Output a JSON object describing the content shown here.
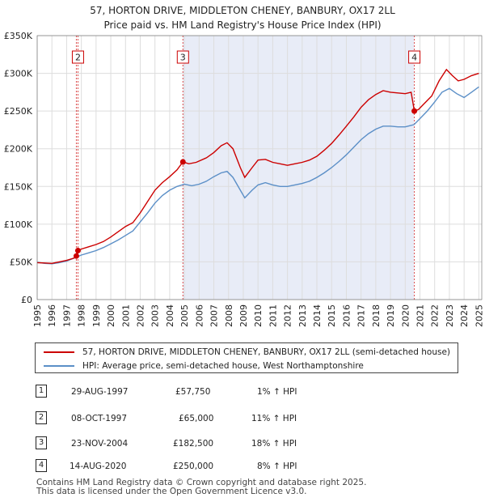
{
  "chart_data": {
    "type": "line",
    "title": "57, HORTON DRIVE, MIDDLETON CHENEY, BANBURY, OX17 2LL",
    "subtitle": "Price paid vs. HM Land Registry's House Price Index (HPI)",
    "xlabel": "",
    "ylabel": "",
    "xlim": [
      1995,
      2025.2
    ],
    "ylim": [
      0,
      350000
    ],
    "yticks": [
      0,
      50000,
      100000,
      150000,
      200000,
      250000,
      300000,
      350000
    ],
    "ytick_labels": [
      "£0",
      "£50K",
      "£100K",
      "£150K",
      "£200K",
      "£250K",
      "£300K",
      "£350K"
    ],
    "xticks": [
      "1995",
      "1996",
      "1997",
      "1998",
      "1999",
      "2000",
      "2001",
      "2002",
      "2003",
      "2004",
      "2005",
      "2006",
      "2007",
      "2008",
      "2009",
      "2010",
      "2011",
      "2012",
      "2013",
      "2014",
      "2015",
      "2016",
      "2017",
      "2018",
      "2019",
      "2020",
      "2021",
      "2022",
      "2023",
      "2024",
      "2025"
    ],
    "shaded_span": [
      2004.9,
      2020.6
    ],
    "series": [
      {
        "name": "57, HORTON DRIVE, MIDDLETON CHENEY, BANBURY, OX17 2LL (semi-detached house)",
        "color": "#cc0000",
        "points": [
          [
            1995.0,
            49000
          ],
          [
            1995.5,
            48500
          ],
          [
            1996.0,
            48000
          ],
          [
            1996.5,
            50000
          ],
          [
            1997.0,
            52000
          ],
          [
            1997.5,
            55000
          ],
          [
            1997.66,
            57750
          ],
          [
            1997.77,
            65000
          ],
          [
            1998.0,
            67000
          ],
          [
            1998.5,
            70000
          ],
          [
            1999.0,
            73000
          ],
          [
            1999.5,
            77000
          ],
          [
            2000.0,
            83000
          ],
          [
            2000.5,
            90000
          ],
          [
            2001.0,
            97000
          ],
          [
            2001.5,
            102000
          ],
          [
            2002.0,
            115000
          ],
          [
            2002.5,
            130000
          ],
          [
            2003.0,
            145000
          ],
          [
            2003.5,
            155000
          ],
          [
            2004.0,
            163000
          ],
          [
            2004.5,
            172000
          ],
          [
            2004.9,
            182500
          ],
          [
            2005.3,
            180000
          ],
          [
            2005.8,
            182000
          ],
          [
            2006.5,
            188000
          ],
          [
            2007.0,
            195000
          ],
          [
            2007.5,
            204000
          ],
          [
            2007.9,
            208000
          ],
          [
            2008.3,
            200000
          ],
          [
            2008.8,
            175000
          ],
          [
            2009.1,
            162000
          ],
          [
            2009.6,
            175000
          ],
          [
            2010.0,
            185000
          ],
          [
            2010.5,
            186000
          ],
          [
            2011.0,
            182000
          ],
          [
            2011.5,
            180000
          ],
          [
            2012.0,
            178000
          ],
          [
            2012.5,
            180000
          ],
          [
            2013.0,
            182000
          ],
          [
            2013.5,
            185000
          ],
          [
            2014.0,
            190000
          ],
          [
            2014.5,
            198000
          ],
          [
            2015.0,
            207000
          ],
          [
            2015.5,
            218000
          ],
          [
            2016.0,
            230000
          ],
          [
            2016.5,
            242000
          ],
          [
            2017.0,
            255000
          ],
          [
            2017.5,
            265000
          ],
          [
            2018.0,
            272000
          ],
          [
            2018.5,
            277000
          ],
          [
            2019.0,
            275000
          ],
          [
            2019.5,
            274000
          ],
          [
            2020.0,
            273000
          ],
          [
            2020.4,
            275000
          ],
          [
            2020.62,
            250000
          ],
          [
            2020.9,
            252000
          ],
          [
            2021.3,
            260000
          ],
          [
            2021.8,
            270000
          ],
          [
            2022.3,
            290000
          ],
          [
            2022.8,
            305000
          ],
          [
            2023.2,
            297000
          ],
          [
            2023.6,
            290000
          ],
          [
            2024.0,
            292000
          ],
          [
            2024.5,
            297000
          ],
          [
            2025.0,
            300000
          ]
        ]
      },
      {
        "name": "HPI: Average price, semi-detached house, West Northamptonshire",
        "color": "#5b8fc7",
        "points": [
          [
            1995.0,
            49500
          ],
          [
            1995.5,
            48000
          ],
          [
            1996.0,
            47500
          ],
          [
            1996.5,
            49000
          ],
          [
            1997.0,
            51000
          ],
          [
            1997.5,
            55000
          ],
          [
            1998.0,
            59000
          ],
          [
            1998.5,
            62000
          ],
          [
            1999.0,
            65000
          ],
          [
            1999.5,
            69000
          ],
          [
            2000.0,
            74000
          ],
          [
            2000.5,
            79000
          ],
          [
            2001.0,
            85000
          ],
          [
            2001.5,
            91000
          ],
          [
            2002.0,
            103000
          ],
          [
            2002.5,
            115000
          ],
          [
            2003.0,
            128000
          ],
          [
            2003.5,
            138000
          ],
          [
            2004.0,
            145000
          ],
          [
            2004.5,
            150000
          ],
          [
            2005.0,
            153000
          ],
          [
            2005.5,
            151000
          ],
          [
            2006.0,
            153000
          ],
          [
            2006.5,
            157000
          ],
          [
            2007.0,
            163000
          ],
          [
            2007.5,
            168000
          ],
          [
            2007.9,
            170000
          ],
          [
            2008.3,
            162000
          ],
          [
            2008.8,
            145000
          ],
          [
            2009.1,
            135000
          ],
          [
            2009.6,
            145000
          ],
          [
            2010.0,
            152000
          ],
          [
            2010.5,
            155000
          ],
          [
            2011.0,
            152000
          ],
          [
            2011.5,
            150000
          ],
          [
            2012.0,
            150000
          ],
          [
            2012.5,
            152000
          ],
          [
            2013.0,
            154000
          ],
          [
            2013.5,
            157000
          ],
          [
            2014.0,
            162000
          ],
          [
            2014.5,
            168000
          ],
          [
            2015.0,
            175000
          ],
          [
            2015.5,
            183000
          ],
          [
            2016.0,
            192000
          ],
          [
            2016.5,
            202000
          ],
          [
            2017.0,
            212000
          ],
          [
            2017.5,
            220000
          ],
          [
            2018.0,
            226000
          ],
          [
            2018.5,
            230000
          ],
          [
            2019.0,
            230000
          ],
          [
            2019.5,
            229000
          ],
          [
            2020.0,
            229000
          ],
          [
            2020.6,
            232000
          ],
          [
            2021.0,
            240000
          ],
          [
            2021.5,
            250000
          ],
          [
            2022.0,
            262000
          ],
          [
            2022.5,
            275000
          ],
          [
            2023.0,
            280000
          ],
          [
            2023.5,
            273000
          ],
          [
            2024.0,
            268000
          ],
          [
            2024.5,
            275000
          ],
          [
            2025.0,
            282000
          ]
        ]
      }
    ],
    "sale_points": [
      {
        "label": "1",
        "x": 1997.66,
        "y": 57750,
        "date": "29-AUG-1997",
        "price": "£57,750",
        "hpi": "1% ↑ HPI"
      },
      {
        "label": "2",
        "x": 1997.77,
        "y": 65000,
        "date": "08-OCT-1997",
        "price": "£65,000",
        "hpi": "11% ↑ HPI"
      },
      {
        "label": "3",
        "x": 2004.9,
        "y": 182500,
        "date": "23-NOV-2004",
        "price": "£182,500",
        "hpi": "18% ↑ HPI"
      },
      {
        "label": "4",
        "x": 2020.62,
        "y": 250000,
        "date": "14-AUG-2020",
        "price": "£250,000",
        "hpi": "8% ↑ HPI"
      }
    ],
    "chart_boxes": [
      "2",
      "3",
      "4"
    ]
  },
  "legend": {
    "items": [
      {
        "label": "57, HORTON DRIVE, MIDDLETON CHENEY, BANBURY, OX17 2LL (semi-detached house)",
        "color": "#cc0000"
      },
      {
        "label": "HPI: Average price, semi-detached house, West Northamptonshire",
        "color": "#5b8fc7"
      }
    ]
  },
  "transactions": [
    {
      "num": "1",
      "date": "29-AUG-1997",
      "price": "£57,750",
      "hpi": "1% ↑ HPI"
    },
    {
      "num": "2",
      "date": "08-OCT-1997",
      "price": "£65,000",
      "hpi": "11% ↑ HPI"
    },
    {
      "num": "3",
      "date": "23-NOV-2004",
      "price": "£182,500",
      "hpi": "18% ↑ HPI"
    },
    {
      "num": "4",
      "date": "14-AUG-2020",
      "price": "£250,000",
      "hpi": "8% ↑ HPI"
    }
  ],
  "footer": {
    "line1": "Contains HM Land Registry data © Crown copyright and database right 2025.",
    "line2": "This data is licensed under the Open Government Licence v3.0."
  }
}
